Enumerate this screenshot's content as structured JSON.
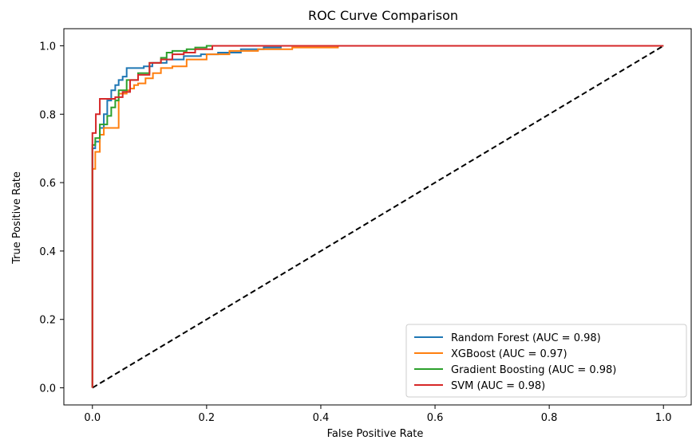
{
  "chart_data": {
    "type": "line",
    "title": "ROC Curve Comparison",
    "xlabel": "False Positive Rate",
    "ylabel": "True Positive Rate",
    "xlim": [
      -0.05,
      1.05
    ],
    "ylim": [
      -0.05,
      1.05
    ],
    "xticks": [
      "0.0",
      "0.2",
      "0.4",
      "0.6",
      "0.8",
      "1.0"
    ],
    "yticks": [
      "0.0",
      "0.2",
      "0.4",
      "0.6",
      "0.8",
      "1.0"
    ],
    "grid": false,
    "legend_position": "lower-right",
    "series": [
      {
        "name": "Random Forest (AUC = 0.98)",
        "color": "#1f77b4",
        "x": [
          0,
          0,
          0.005,
          0.005,
          0.013,
          0.013,
          0.02,
          0.02,
          0.026,
          0.026,
          0.033,
          0.033,
          0.04,
          0.04,
          0.046,
          0.046,
          0.053,
          0.053,
          0.06,
          0.06,
          0.09,
          0.09,
          0.105,
          0.105,
          0.13,
          0.13,
          0.16,
          0.16,
          0.19,
          0.19,
          0.22,
          0.22,
          0.26,
          0.26,
          0.3,
          0.3,
          0.33,
          0.33,
          1.0
        ],
        "y": [
          0,
          0.7,
          0.7,
          0.72,
          0.72,
          0.76,
          0.76,
          0.8,
          0.8,
          0.84,
          0.84,
          0.87,
          0.87,
          0.885,
          0.885,
          0.9,
          0.9,
          0.91,
          0.91,
          0.935,
          0.935,
          0.94,
          0.94,
          0.95,
          0.95,
          0.96,
          0.96,
          0.97,
          0.97,
          0.975,
          0.975,
          0.98,
          0.98,
          0.99,
          0.99,
          0.995,
          0.995,
          1.0,
          1.0
        ]
      },
      {
        "name": "XGBoost (AUC = 0.97)",
        "color": "#ff7f0e",
        "x": [
          0,
          0,
          0.005,
          0.005,
          0.013,
          0.013,
          0.02,
          0.02,
          0.033,
          0.033,
          0.046,
          0.046,
          0.06,
          0.06,
          0.066,
          0.066,
          0.073,
          0.073,
          0.08,
          0.08,
          0.093,
          0.093,
          0.106,
          0.106,
          0.12,
          0.12,
          0.14,
          0.14,
          0.165,
          0.165,
          0.2,
          0.2,
          0.24,
          0.24,
          0.29,
          0.29,
          0.35,
          0.35,
          0.43,
          0.43,
          1.0
        ],
        "y": [
          0,
          0.64,
          0.64,
          0.69,
          0.69,
          0.74,
          0.74,
          0.76,
          0.76,
          0.76,
          0.76,
          0.86,
          0.86,
          0.87,
          0.87,
          0.875,
          0.875,
          0.885,
          0.885,
          0.89,
          0.89,
          0.905,
          0.905,
          0.92,
          0.92,
          0.935,
          0.935,
          0.94,
          0.94,
          0.96,
          0.96,
          0.975,
          0.975,
          0.985,
          0.985,
          0.99,
          0.99,
          0.995,
          0.995,
          1.0,
          1.0
        ]
      },
      {
        "name": "Gradient Boosting (AUC = 0.98)",
        "color": "#2ca02c",
        "x": [
          0,
          0,
          0.005,
          0.005,
          0.013,
          0.013,
          0.026,
          0.026,
          0.033,
          0.033,
          0.04,
          0.04,
          0.046,
          0.046,
          0.06,
          0.06,
          0.08,
          0.08,
          0.1,
          0.1,
          0.12,
          0.12,
          0.13,
          0.13,
          0.14,
          0.14,
          0.165,
          0.165,
          0.18,
          0.18,
          0.2,
          0.2,
          1.0
        ],
        "y": [
          0,
          0.71,
          0.71,
          0.73,
          0.73,
          0.77,
          0.77,
          0.795,
          0.795,
          0.82,
          0.82,
          0.84,
          0.84,
          0.87,
          0.87,
          0.9,
          0.9,
          0.92,
          0.92,
          0.95,
          0.95,
          0.965,
          0.965,
          0.98,
          0.98,
          0.985,
          0.985,
          0.99,
          0.99,
          0.995,
          0.995,
          1.0,
          1.0
        ]
      },
      {
        "name": "SVM (AUC = 0.98)",
        "color": "#d62728",
        "x": [
          0,
          0,
          0.006,
          0.006,
          0.013,
          0.013,
          0.04,
          0.04,
          0.053,
          0.053,
          0.066,
          0.066,
          0.08,
          0.08,
          0.1,
          0.1,
          0.12,
          0.12,
          0.14,
          0.14,
          0.16,
          0.16,
          0.18,
          0.18,
          0.21,
          0.21,
          1.0
        ],
        "y": [
          0,
          0.745,
          0.745,
          0.8,
          0.8,
          0.845,
          0.845,
          0.85,
          0.85,
          0.865,
          0.865,
          0.9,
          0.9,
          0.915,
          0.915,
          0.95,
          0.95,
          0.96,
          0.96,
          0.975,
          0.975,
          0.98,
          0.98,
          0.99,
          0.99,
          1.0,
          1.0
        ]
      }
    ],
    "reference_line": {
      "x": [
        0,
        1
      ],
      "y": [
        0,
        1
      ],
      "color": "#000000",
      "style": "dashed"
    }
  }
}
